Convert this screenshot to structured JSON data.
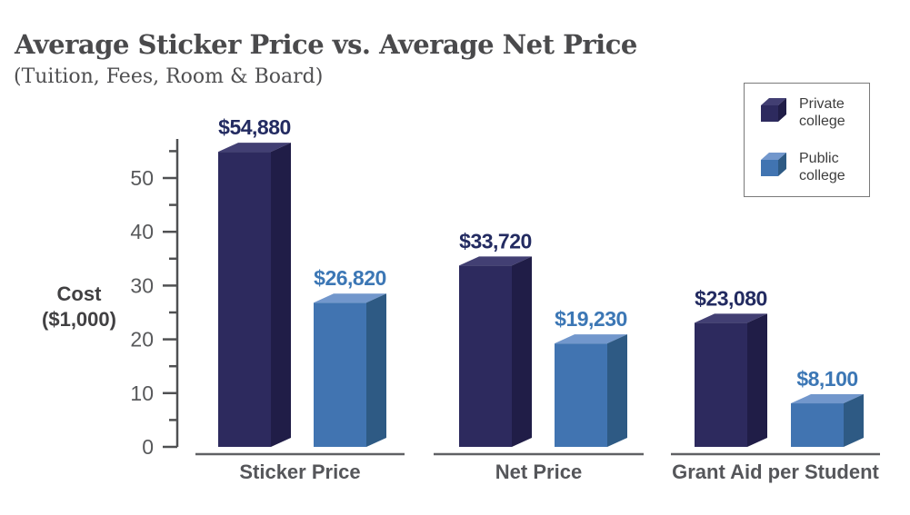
{
  "title": "Average Sticker Price vs. Average Net Price",
  "subtitle": "(Tuition, Fees, Room & Board)",
  "axis": {
    "label_line1": "Cost",
    "label_line2": "($1,000)",
    "major_ticks": [
      0,
      10,
      20,
      30,
      40,
      50
    ],
    "minor_tick_step": 5,
    "axis_max": 55
  },
  "legend": {
    "items": [
      {
        "key": "private",
        "label_line1": "Private",
        "label_line2": "college"
      },
      {
        "key": "public",
        "label_line1": "Public",
        "label_line2": "college"
      }
    ]
  },
  "chart_data": {
    "type": "bar",
    "style": "3d-bars",
    "title": "Average Sticker Price vs. Average Net Price",
    "subtitle": "(Tuition, Fees, Room & Board)",
    "ylabel": "Cost ($1,000)",
    "ylim": [
      0,
      55
    ],
    "grid": false,
    "legend_position": "top-right",
    "categories": [
      "Sticker Price",
      "Net Price",
      "Grant Aid per Student"
    ],
    "series": [
      {
        "name": "Private college",
        "values": [
          54880,
          33720,
          23080
        ],
        "labels": [
          "$54,880",
          "$33,720",
          "$23,080"
        ]
      },
      {
        "name": "Public college",
        "values": [
          26820,
          19230,
          8100
        ],
        "labels": [
          "$26,820",
          "$19,230",
          "$8,100"
        ]
      }
    ]
  },
  "colors": {
    "private": {
      "front": "#2d2a5e",
      "top": "#423f73",
      "side": "#201d47",
      "label": "#232b61"
    },
    "public": {
      "front": "#4174b1",
      "top": "#7297cc",
      "side": "#2e5a84",
      "label": "#3c77b5"
    },
    "axis": "#4f5052",
    "tick_label": "#58595b",
    "category_label": "#55565a",
    "baseline": "#606164",
    "background": "#ffffff"
  }
}
